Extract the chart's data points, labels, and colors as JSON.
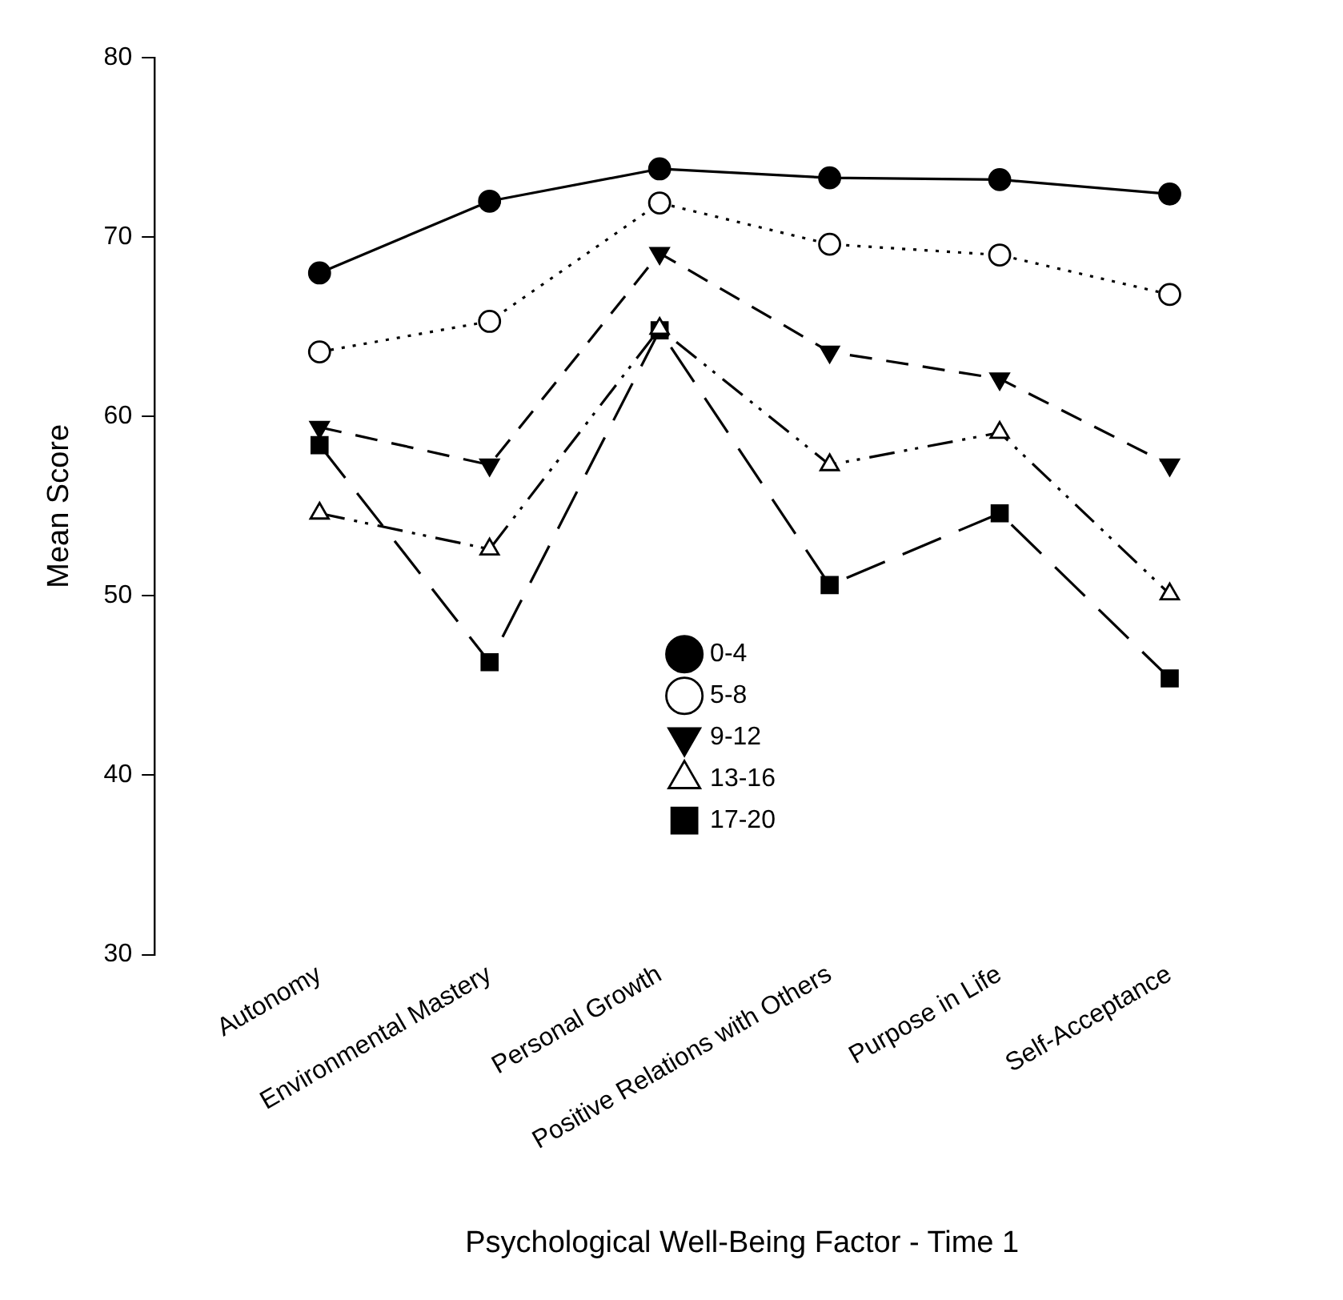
{
  "chart_data": {
    "type": "line",
    "xlabel": "Psychological Well-Being Factor - Time 1",
    "ylabel": "Mean Score",
    "categories": [
      "Autonomy",
      "Environmental Mastery",
      "Personal Growth",
      "Positive Relations with Others",
      "Purpose in Life",
      "Self-Acceptance"
    ],
    "ylim": [
      30,
      80
    ],
    "yticks": [
      30,
      40,
      50,
      60,
      70,
      80
    ],
    "grid": false,
    "legend": "bottom",
    "series": [
      {
        "name": "0-4",
        "color": "#000000",
        "marker": "circle",
        "line_style": "solid",
        "values": [
          68.0,
          72.0,
          73.8,
          73.3,
          73.2,
          72.4
        ]
      },
      {
        "name": "5-8",
        "color": "#000000",
        "marker": "circle-open",
        "line_style": "dotted",
        "values": [
          63.6,
          65.3,
          71.9,
          69.6,
          69.0,
          66.8
        ]
      },
      {
        "name": "9-12",
        "color": "#000000",
        "marker": "triangle-down",
        "line_style": "dashed",
        "values": [
          59.4,
          57.3,
          69.1,
          63.6,
          62.1,
          57.3
        ]
      },
      {
        "name": "13-16",
        "color": "#000000",
        "marker": "triangle-open",
        "line_style": "dashdotdot",
        "values": [
          54.6,
          52.6,
          64.9,
          57.3,
          59.1,
          50.1
        ]
      },
      {
        "name": "17-20",
        "color": "#000000",
        "marker": "square",
        "line_style": "longdash",
        "values": [
          58.4,
          46.3,
          64.8,
          50.6,
          54.6,
          45.4
        ]
      }
    ]
  }
}
